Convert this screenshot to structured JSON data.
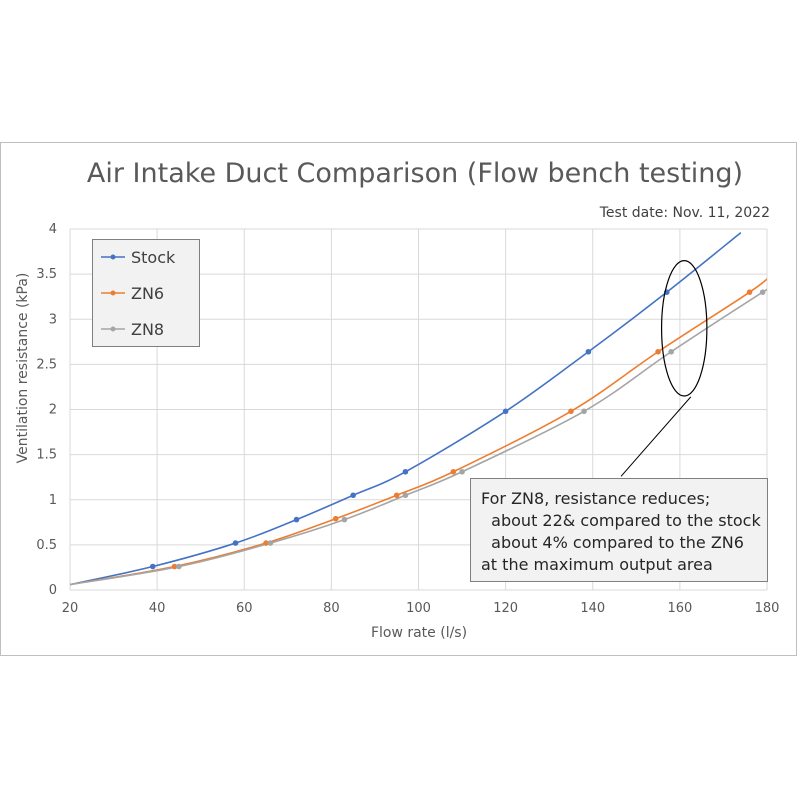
{
  "chart_data": {
    "type": "line",
    "title": "Air Intake Duct Comparison (Flow bench testing)",
    "subtitle": "Test date: Nov. 11, 2022",
    "xlabel": "Flow rate (l/s)",
    "ylabel": "Ventilation resistance  (kPa)",
    "xlim": [
      20,
      180
    ],
    "ylim": [
      0,
      4
    ],
    "xticks": [
      20,
      40,
      60,
      80,
      100,
      120,
      140,
      160,
      180
    ],
    "yticks": [
      0,
      0.5,
      1,
      1.5,
      2,
      2.5,
      3,
      3.5,
      4
    ],
    "ytick_labels": [
      "0",
      "0.5",
      "1",
      "1.5",
      "2",
      "2.5",
      "3",
      "3.5",
      "4"
    ],
    "grid": true,
    "legend_position": "top-left",
    "series": [
      {
        "name": "Stock",
        "color": "#4472c4",
        "points": [
          [
            20,
            0.06
          ],
          [
            39,
            0.26
          ],
          [
            58,
            0.52
          ],
          [
            72,
            0.78
          ],
          [
            85,
            1.05
          ],
          [
            97,
            1.31
          ],
          [
            120,
            1.98
          ],
          [
            139,
            2.64
          ],
          [
            157,
            3.3
          ],
          [
            174,
            3.96
          ]
        ]
      },
      {
        "name": "ZN6",
        "color": "#ed7d31",
        "points": [
          [
            20,
            0.06
          ],
          [
            44,
            0.26
          ],
          [
            65,
            0.52
          ],
          [
            81,
            0.79
          ],
          [
            95,
            1.05
          ],
          [
            108,
            1.31
          ],
          [
            135,
            1.98
          ],
          [
            155,
            2.64
          ],
          [
            176,
            3.3
          ],
          [
            181,
            3.49
          ]
        ]
      },
      {
        "name": "ZN8",
        "color": "#a5a5a5",
        "points": [
          [
            20,
            0.06
          ],
          [
            45,
            0.26
          ],
          [
            66,
            0.52
          ],
          [
            83,
            0.78
          ],
          [
            97,
            1.05
          ],
          [
            110,
            1.31
          ],
          [
            138,
            1.98
          ],
          [
            158,
            2.64
          ],
          [
            179,
            3.3
          ],
          [
            181,
            3.35
          ]
        ]
      }
    ],
    "annotation": {
      "lines": [
        "For ZN8, resistance reduces;",
        "  about 22& compared to the stock",
        "  about 4% compared to the ZN6",
        "at the maximum output area"
      ],
      "ellipse_center": [
        161,
        2.9
      ],
      "ellipse_radius": [
        5.2,
        0.75
      ],
      "leader_from": [
        162.5,
        2.14
      ],
      "leader_to": [
        146.5,
        1.26
      ]
    }
  }
}
